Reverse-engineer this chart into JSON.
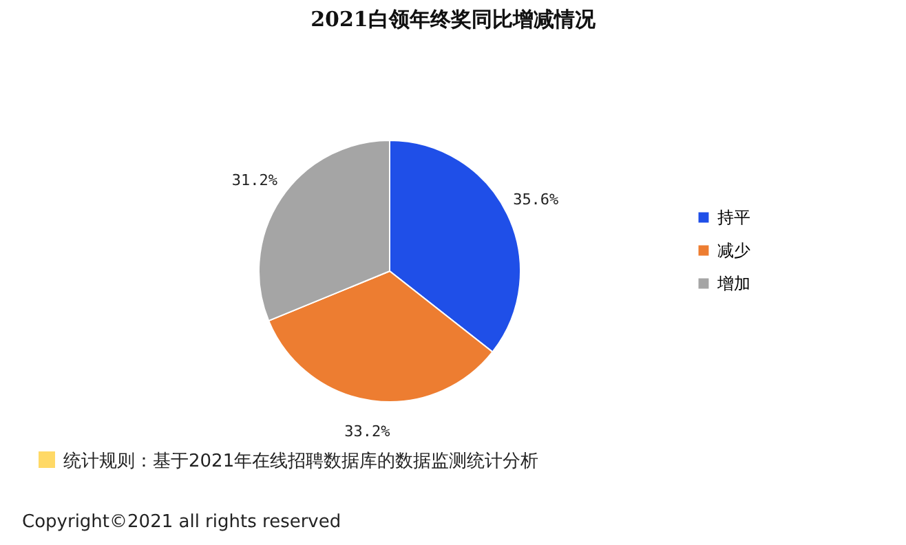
{
  "chart_data": {
    "type": "pie",
    "title": "2021白领年终奖同比增减情况",
    "categories": [
      "持平",
      "减少",
      "增加"
    ],
    "values": [
      35.6,
      33.2,
      31.2
    ],
    "colors": [
      "#1f4fe8",
      "#ed7d31",
      "#a5a5a5"
    ],
    "value_labels": [
      "35.6%",
      "33.2%",
      "31.2%"
    ],
    "legend": "right",
    "annotations": [
      "统计规则：基于2021年在线招聘数据库的数据监测统计分析",
      "Copyright©2021 all rights reserved"
    ]
  }
}
